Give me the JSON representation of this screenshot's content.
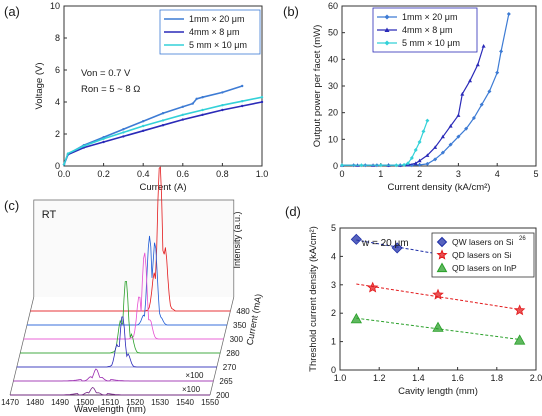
{
  "figure": {
    "panels": [
      "(a)",
      "(b)",
      "(c)",
      "(d)"
    ]
  },
  "chart_data": [
    {
      "panel": "(a)",
      "type": "line",
      "xlabel": "Current (A)",
      "ylabel": "Voltage (V)",
      "xlim": [
        0,
        1.0
      ],
      "ylim": [
        0,
        10
      ],
      "xticks": [
        "0.0",
        "0.2",
        "0.4",
        "0.6",
        "0.8",
        "1.0"
      ],
      "yticks": [
        "0",
        "2",
        "4",
        "6",
        "8",
        "10"
      ],
      "legend": [
        "1mm × 20 μm",
        "4mm × 8 μm",
        "5 mm × 10 μm"
      ],
      "legend_position": "top-right",
      "annotation_lines": [
        "Von = 0.7 V",
        "Ron = 5 ~ 8 Ω"
      ],
      "series": [
        {
          "name": "1mm × 20 μm",
          "color": "#3d7bd4",
          "points": [
            [
              0,
              0.1
            ],
            [
              0.02,
              0.75
            ],
            [
              0.1,
              1.3
            ],
            [
              0.2,
              1.8
            ],
            [
              0.3,
              2.3
            ],
            [
              0.4,
              2.8
            ],
            [
              0.5,
              3.3
            ],
            [
              0.6,
              3.7
            ],
            [
              0.65,
              3.9
            ],
            [
              0.67,
              4.2
            ],
            [
              0.7,
              4.3
            ],
            [
              0.8,
              4.6
            ],
            [
              0.9,
              5.0
            ]
          ]
        },
        {
          "name": "4mm × 8 μm",
          "color": "#2a2ab8",
          "points": [
            [
              0,
              0.1
            ],
            [
              0.02,
              0.72
            ],
            [
              0.1,
              1.15
            ],
            [
              0.2,
              1.5
            ],
            [
              0.3,
              1.85
            ],
            [
              0.4,
              2.2
            ],
            [
              0.5,
              2.55
            ],
            [
              0.6,
              2.9
            ],
            [
              0.7,
              3.2
            ],
            [
              0.8,
              3.5
            ],
            [
              0.9,
              3.75
            ],
            [
              1.0,
              4.0
            ]
          ]
        },
        {
          "name": "5 mm × 10 μm",
          "color": "#33d1d8",
          "points": [
            [
              0,
              0.1
            ],
            [
              0.02,
              0.78
            ],
            [
              0.1,
              1.25
            ],
            [
              0.2,
              1.7
            ],
            [
              0.3,
              2.1
            ],
            [
              0.4,
              2.5
            ],
            [
              0.5,
              2.85
            ],
            [
              0.6,
              3.2
            ],
            [
              0.7,
              3.5
            ],
            [
              0.8,
              3.8
            ],
            [
              0.9,
              4.05
            ],
            [
              1.0,
              4.3
            ]
          ]
        }
      ]
    },
    {
      "panel": "(b)",
      "type": "line",
      "xlabel": "Current density (kA/cm²)",
      "ylabel": "Output power per facet (mW)",
      "xlim": [
        0,
        5
      ],
      "ylim": [
        0,
        60
      ],
      "xticks": [
        "0",
        "1",
        "2",
        "3",
        "4",
        "5"
      ],
      "yticks": [
        "0",
        "10",
        "20",
        "30",
        "40",
        "50",
        "60"
      ],
      "legend": [
        "1mm × 20 μm",
        "4mm × 8 μm",
        "5 mm × 10 μm"
      ],
      "legend_position": "top-center",
      "series": [
        {
          "name": "1mm × 20 μm",
          "color": "#3d7bd4",
          "marker": "diamond",
          "points": [
            [
              0,
              0.3
            ],
            [
              0.3,
              0.3
            ],
            [
              0.6,
              0.3
            ],
            [
              0.9,
              0.3
            ],
            [
              1.2,
              0.3
            ],
            [
              1.5,
              0.3
            ],
            [
              1.8,
              0.3
            ],
            [
              2.0,
              0.4
            ],
            [
              2.2,
              0.8
            ],
            [
              2.4,
              2.5
            ],
            [
              2.6,
              5
            ],
            [
              2.8,
              8
            ],
            [
              3.0,
              11
            ],
            [
              3.2,
              14
            ],
            [
              3.4,
              18
            ],
            [
              3.6,
              23
            ],
            [
              3.8,
              28
            ],
            [
              4.0,
              35
            ],
            [
              4.1,
              43
            ],
            [
              4.3,
              57
            ]
          ]
        },
        {
          "name": "4mm × 8 μm",
          "color": "#2a2ab8",
          "marker": "triangle",
          "points": [
            [
              0,
              0.3
            ],
            [
              0.4,
              0.3
            ],
            [
              0.8,
              0.3
            ],
            [
              1.2,
              0.3
            ],
            [
              1.5,
              0.3
            ],
            [
              1.7,
              0.4
            ],
            [
              1.9,
              1
            ],
            [
              2.0,
              2
            ],
            [
              2.2,
              4
            ],
            [
              2.4,
              7
            ],
            [
              2.6,
              11
            ],
            [
              2.8,
              15
            ],
            [
              3.0,
              19
            ],
            [
              3.1,
              27
            ],
            [
              3.3,
              32
            ],
            [
              3.5,
              38
            ],
            [
              3.65,
              45
            ]
          ]
        },
        {
          "name": "5 mm × 10 μm",
          "color": "#33d1d8",
          "marker": "diamond",
          "points": [
            [
              0,
              0.3
            ],
            [
              0.5,
              0.3
            ],
            [
              1.0,
              0.3
            ],
            [
              1.4,
              0.3
            ],
            [
              1.6,
              0.4
            ],
            [
              1.7,
              1
            ],
            [
              1.8,
              3
            ],
            [
              1.9,
              6
            ],
            [
              2.0,
              9
            ],
            [
              2.1,
              13
            ],
            [
              2.2,
              17
            ]
          ]
        }
      ]
    },
    {
      "panel": "(c)",
      "type": "line",
      "annotation": "RT",
      "xlabel": "Wavelength (nm)",
      "ylabel": "Intensity (a.u.)",
      "zlabel": "Current (mA)",
      "xticks": [
        "1470",
        "1480",
        "1490",
        "1500",
        "1510",
        "1520",
        "1530",
        "1540",
        "1550"
      ],
      "current_ticks": [
        "200",
        "265",
        "270",
        "280",
        "300",
        "350",
        "480"
      ],
      "scale_labels": [
        "×100",
        "×100"
      ],
      "series": [
        {
          "current": "200",
          "color": "#7a2a8a",
          "peak_nm": 1503,
          "peak_height": 0.05,
          "scale": "×100"
        },
        {
          "current": "265",
          "color": "#9a2ab0",
          "peak_nm": 1503,
          "peak_height": 0.08,
          "scale": "×100"
        },
        {
          "current": "270",
          "color": "#2a2ab8",
          "peak_nm": 1512,
          "peak_height": 0.35
        },
        {
          "current": "280",
          "color": "#2aa02a",
          "peak_nm": 1512,
          "peak_height": 0.5
        },
        {
          "current": "300",
          "color": "#e64fd1",
          "peak_nm": 1518,
          "peak_height": 0.6
        },
        {
          "current": "350",
          "color": "#1f5bd6",
          "peak_nm": 1520,
          "peak_height": 0.75
        },
        {
          "current": "480",
          "color": "#e31a1c",
          "peak_nm": 1522,
          "peak_height": 1.0
        }
      ]
    },
    {
      "panel": "(d)",
      "type": "scatter",
      "annotation": "w = 20 μm",
      "xlabel": "Cavity length (mm)",
      "ylabel": "Threshold current density (kA/cm²)",
      "xlim": [
        0.9,
        2.1
      ],
      "ylim": [
        0,
        5
      ],
      "xticks": [
        "1.0",
        "1.2",
        "1.4",
        "1.6",
        "1.8",
        "2.0"
      ],
      "yticks": [
        "0",
        "1",
        "2",
        "3",
        "4",
        "5"
      ],
      "legend": [
        "QW lasers on Si",
        "QD lasers on Si",
        "QD lasers on InP"
      ],
      "legend_superscript": "26",
      "legend_position": "top-right",
      "series": [
        {
          "name": "QW lasers on Si",
          "color": "#1f2fa8",
          "marker": "diamond",
          "x": [
            1.0,
            1.25,
            2.0
          ],
          "y": [
            4.6,
            4.3,
            3.6
          ]
        },
        {
          "name": "QD lasers on Si",
          "color": "#e31a1c",
          "marker": "star",
          "x": [
            1.1,
            1.5,
            2.0
          ],
          "y": [
            2.9,
            2.65,
            2.1
          ]
        },
        {
          "name": "QD lasers on InP",
          "color": "#2aa02a",
          "marker": "triangle",
          "x": [
            1.0,
            1.5,
            2.0
          ],
          "y": [
            1.8,
            1.5,
            1.05
          ]
        }
      ]
    }
  ]
}
